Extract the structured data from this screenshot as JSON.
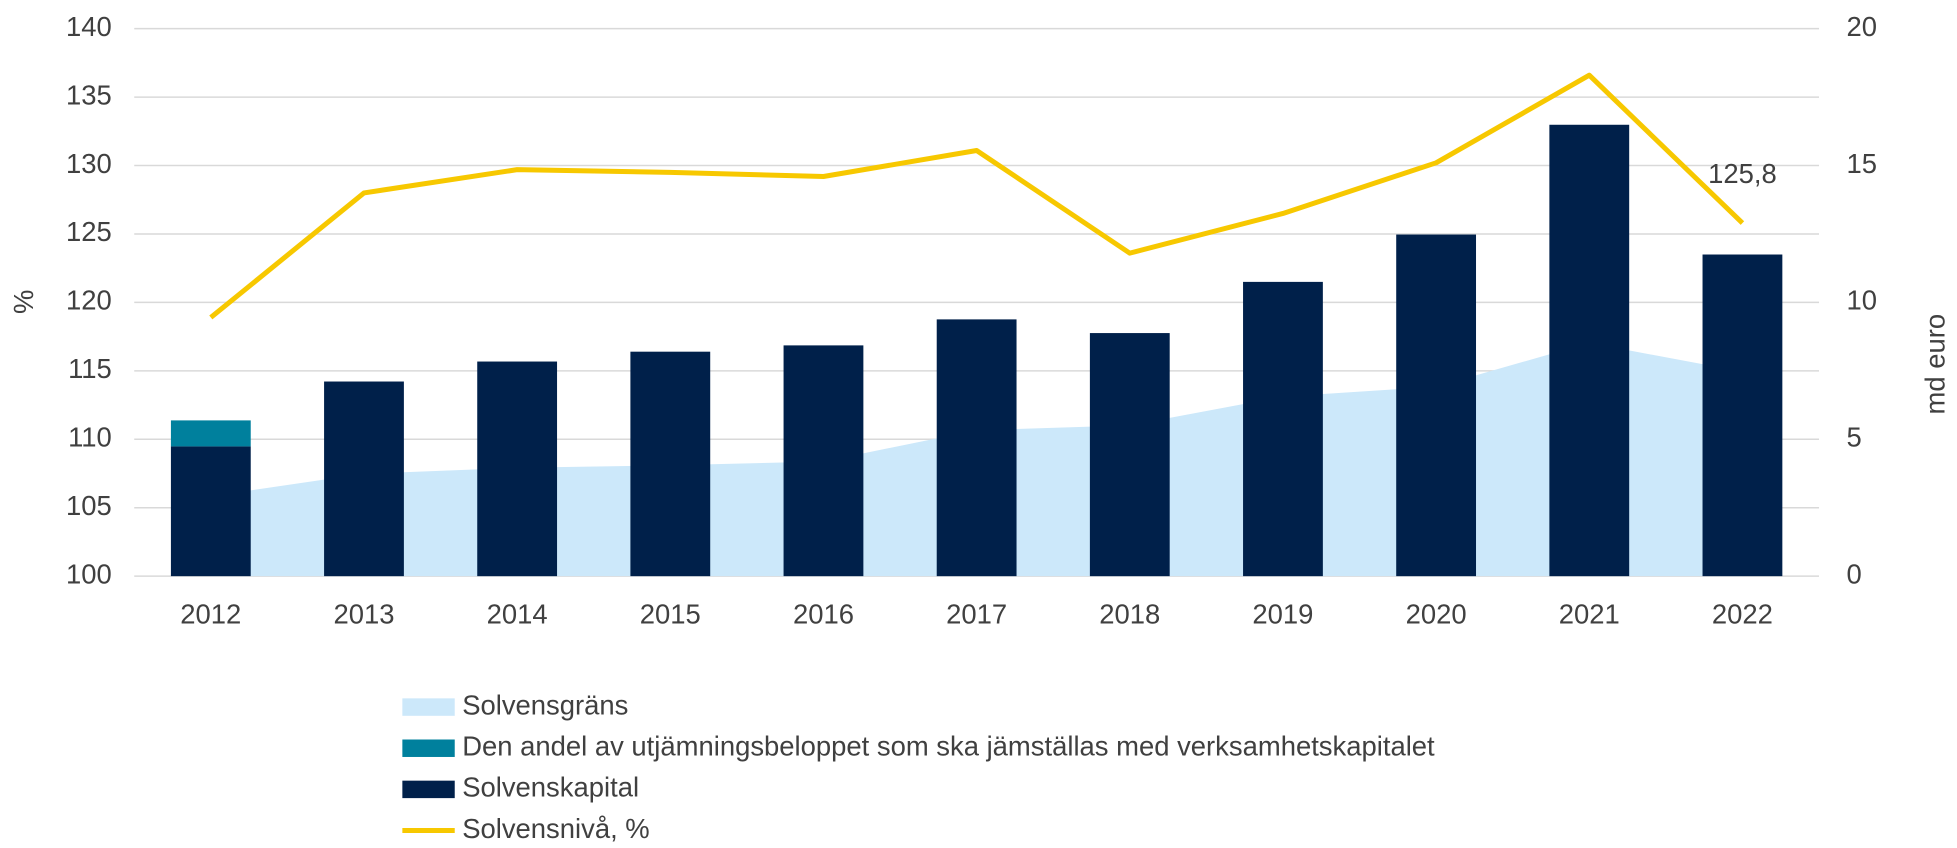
{
  "chart_data": {
    "type": "bar",
    "categories": [
      "2012",
      "2013",
      "2014",
      "2015",
      "2016",
      "2017",
      "2018",
      "2019",
      "2020",
      "2021",
      "2022"
    ],
    "ylabel": "%",
    "y2label": "md euro",
    "ylim": [
      100,
      140
    ],
    "yticks": [
      100,
      105,
      110,
      115,
      120,
      125,
      130,
      135,
      140
    ],
    "y2lim": [
      0,
      20
    ],
    "y2ticks": [
      0,
      5,
      10,
      15,
      20
    ],
    "grid": true,
    "legend": "bottom",
    "series": [
      {
        "name": "Solvensgräns",
        "type": "area",
        "axis": "y2",
        "color": "#cce8fa",
        "values": [
          2.92,
          3.74,
          3.96,
          4.05,
          4.19,
          5.33,
          5.51,
          6.56,
          6.92,
          8.52,
          7.47
        ]
      },
      {
        "name": "Den andel av utjämningsbeloppet som ska jämställas med verksamhetskapitalet",
        "type": "bar",
        "axis": "y2",
        "color": "#00809d",
        "values": [
          0.95,
          null,
          null,
          null,
          null,
          null,
          null,
          null,
          null,
          null,
          null
        ]
      },
      {
        "name": "Solvenskapital",
        "type": "bar",
        "axis": "y2",
        "color": "#00204a",
        "values": [
          4.74,
          7.11,
          7.84,
          8.2,
          8.43,
          9.38,
          8.88,
          10.75,
          12.48,
          16.49,
          11.75
        ]
      },
      {
        "name": "Solvensnivå, %",
        "type": "line",
        "color": "#f7c800",
        "values": [
          118.9,
          128.0,
          129.7,
          129.5,
          129.2,
          131.1,
          123.6,
          126.5,
          130.2,
          136.6,
          125.8
        ],
        "value_labels": [
          null,
          null,
          null,
          null,
          null,
          null,
          null,
          null,
          null,
          null,
          "125,8"
        ]
      }
    ]
  }
}
